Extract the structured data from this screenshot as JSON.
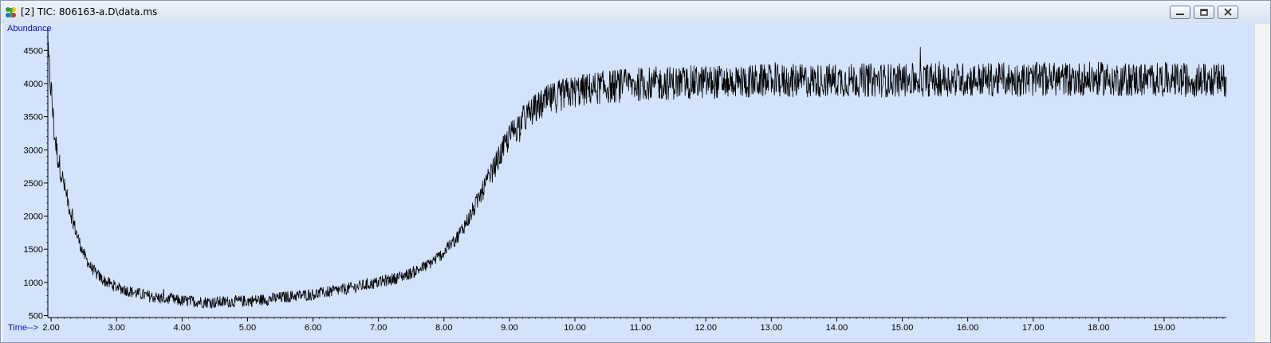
{
  "window": {
    "title": "[2] TIC: 806163-a.D\\data.ms",
    "icon": "chromatogram-app-icon",
    "buttons": [
      {
        "name": "minimize-button",
        "icon": "minimize-icon"
      },
      {
        "name": "restore-button",
        "icon": "restore-icon"
      },
      {
        "name": "close-button",
        "icon": "close-icon"
      }
    ]
  },
  "colors": {
    "plot_background": "#d3e3fb",
    "trace": "#000000",
    "axis_label": "#1010c0"
  },
  "chart_data": {
    "type": "line",
    "title": "",
    "xlabel": "Time-->",
    "ylabel": "Abundance",
    "xlim": [
      1.95,
      19.95
    ],
    "ylim": [
      470,
      4840
    ],
    "x_ticks": [
      2.0,
      3.0,
      4.0,
      5.0,
      6.0,
      7.0,
      8.0,
      9.0,
      10.0,
      11.0,
      12.0,
      13.0,
      14.0,
      15.0,
      16.0,
      17.0,
      18.0,
      19.0
    ],
    "x_tick_labels": [
      "2.00",
      "3.00",
      "4.00",
      "5.00",
      "6.00",
      "7.00",
      "8.00",
      "9.00",
      "10.00",
      "11.00",
      "12.00",
      "13.00",
      "14.00",
      "15.00",
      "16.00",
      "17.00",
      "18.00",
      "19.00"
    ],
    "y_ticks": [
      500,
      1000,
      1500,
      2000,
      2500,
      3000,
      3500,
      4000,
      4500
    ],
    "y_tick_labels": [
      "500",
      "1000",
      "1500",
      "2000",
      "2500",
      "3000",
      "3500",
      "4000",
      "4500"
    ],
    "grid": false,
    "series": [
      {
        "x": [
          1.95,
          2.0,
          2.05,
          2.1,
          2.2,
          2.3,
          2.4,
          2.5,
          2.6,
          2.7,
          2.8,
          3.0,
          3.25,
          3.5,
          3.75,
          4.0,
          4.25,
          4.5,
          4.75,
          5.0,
          5.25,
          5.5,
          5.75,
          6.0,
          6.25,
          6.5,
          6.75,
          7.0,
          7.25,
          7.5,
          7.75,
          8.0,
          8.2,
          8.4,
          8.6,
          8.8,
          9.0,
          9.2,
          9.4,
          9.6,
          9.8,
          10.0,
          10.25,
          10.5,
          10.75,
          11.0,
          11.5,
          12.0,
          12.5,
          13.0,
          13.5,
          14.0,
          14.5,
          15.0,
          15.5,
          16.0,
          16.5,
          17.0,
          17.5,
          18.0,
          18.5,
          19.0,
          19.5,
          19.95
        ],
        "values": [
          4450,
          3900,
          3250,
          2900,
          2450,
          2050,
          1700,
          1420,
          1240,
          1120,
          1030,
          930,
          850,
          790,
          750,
          720,
          710,
          700,
          710,
          720,
          740,
          770,
          800,
          820,
          860,
          900,
          950,
          1000,
          1060,
          1140,
          1260,
          1450,
          1680,
          2000,
          2400,
          2800,
          3200,
          3450,
          3620,
          3750,
          3830,
          3880,
          3920,
          3950,
          3970,
          3990,
          4010,
          4020,
          4030,
          4040,
          4040,
          4050,
          4050,
          4050,
          4060,
          4060,
          4060,
          4060,
          4070,
          4070,
          4060,
          4060,
          4050,
          4050
        ],
        "noise_amplitude": 260
      }
    ]
  }
}
